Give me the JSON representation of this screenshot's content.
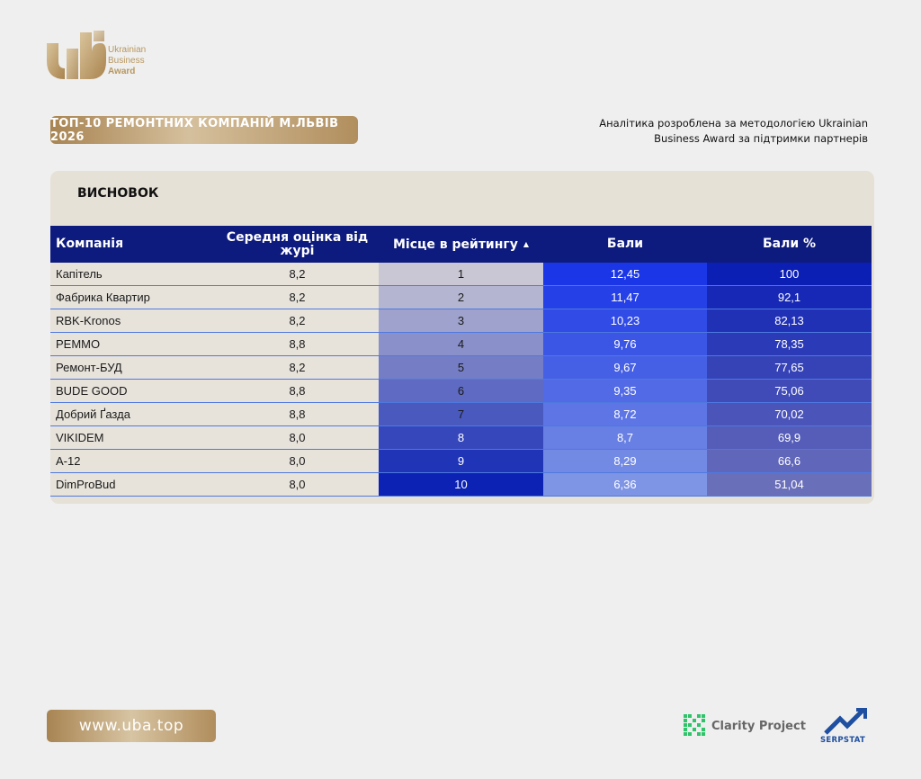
{
  "brand": {
    "logo_lines": [
      "Ukrainian",
      "Business",
      "Award"
    ]
  },
  "header": {
    "title": "ТОП-10 РЕМОНТНИХ КОМПАНІЙ М.ЛЬВІВ 2026",
    "analytics_line1": "Аналітика розроблена за методологією Ukrainian",
    "analytics_line2": "Business Award за підтримки партнерів"
  },
  "panel": {
    "title": "ВИСНОВОК"
  },
  "table": {
    "headers": {
      "company": "Компанія",
      "avg": "Середня оцінка від журі",
      "place": "Місце в рейтингу",
      "points": "Бали",
      "percent": "Бали %"
    },
    "sort_indicator": "▲",
    "rows": [
      {
        "company": "Капітель",
        "avg": "8,2",
        "place": "1",
        "points": "12,45",
        "percent": "100"
      },
      {
        "company": "Фабрика Квартир",
        "avg": "8,2",
        "place": "2",
        "points": "11,47",
        "percent": "92,1"
      },
      {
        "company": "RBK-Kronos",
        "avg": "8,2",
        "place": "3",
        "points": "10,23",
        "percent": "82,13"
      },
      {
        "company": "РЕММО",
        "avg": "8,8",
        "place": "4",
        "points": "9,76",
        "percent": "78,35"
      },
      {
        "company": "Ремонт-БУД",
        "avg": "8,2",
        "place": "5",
        "points": "9,67",
        "percent": "77,65"
      },
      {
        "company": "BUDE GOOD",
        "avg": "8,8",
        "place": "6",
        "points": "9,35",
        "percent": "75,06"
      },
      {
        "company": "Добрий Ґазда",
        "avg": "8,8",
        "place": "7",
        "points": "8,72",
        "percent": "70,02"
      },
      {
        "company": "VIKIDEM",
        "avg": "8,0",
        "place": "8",
        "points": "8,7",
        "percent": "69,9"
      },
      {
        "company": "А-12",
        "avg": "8,0",
        "place": "9",
        "points": "8,29",
        "percent": "66,6"
      },
      {
        "company": "DimProBud",
        "avg": "8,0",
        "place": "10",
        "points": "6,36",
        "percent": "51,04"
      }
    ]
  },
  "footer": {
    "url": "www.uba.top",
    "partner1": "Clarity Project",
    "partner2": "SERPSTAT"
  },
  "colors": {
    "header_bg": "#0e1b7e",
    "gold": "#b8975f",
    "place_gradient": [
      "#c9c7d3",
      "#0b22b4"
    ],
    "points_gradient": [
      "#1a36e6",
      "#7e94e4"
    ],
    "percent_gradient": [
      "#0c1fb4",
      "#6a6fba"
    ]
  }
}
